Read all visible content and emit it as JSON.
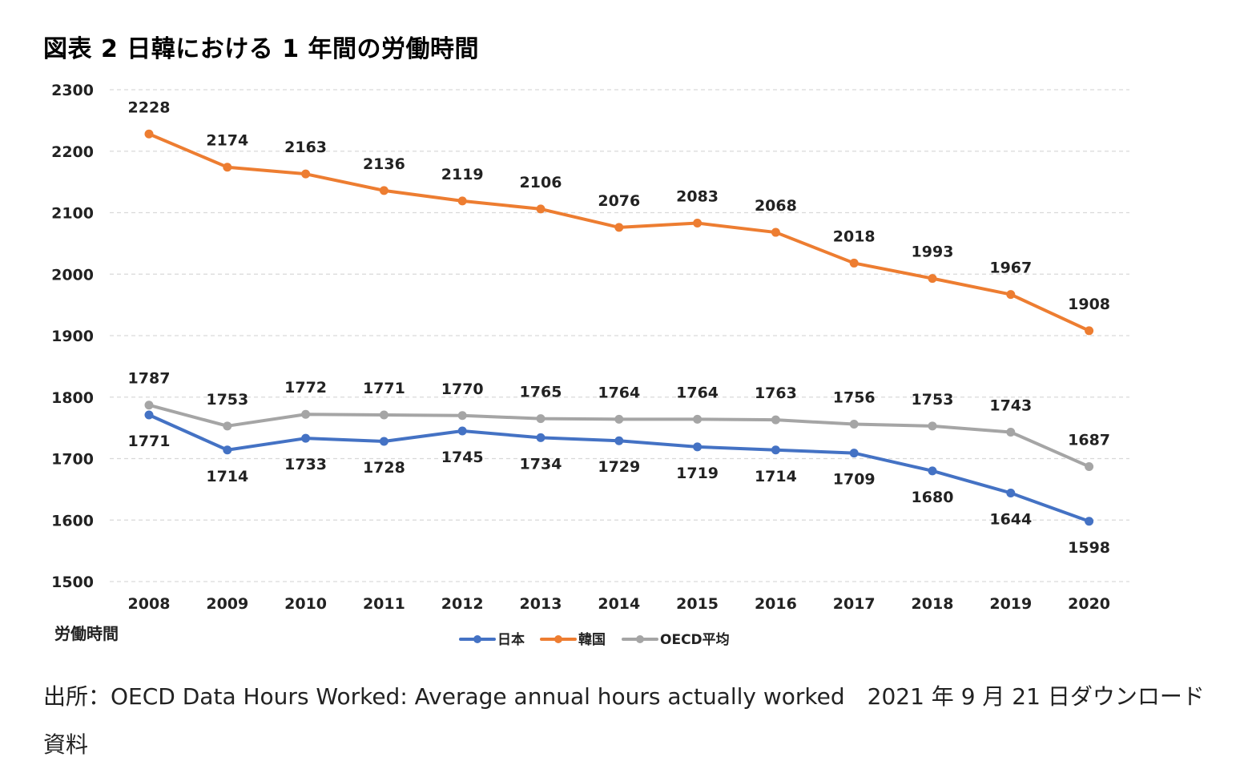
{
  "title": "図表 2  日韓における 1 年間の労働時間",
  "source_note": "出所：OECD Data Hours Worked: Average annual hours actually worked　2021 年 9 月 21 日ダウンロード資料",
  "chart_data": {
    "type": "line",
    "title": "図表 2  日韓における 1 年間の労働時間",
    "xlabel": "",
    "ylabel": "労働時間",
    "ylim": [
      1500,
      2300
    ],
    "yticks": [
      1500,
      1600,
      1700,
      1800,
      1900,
      2000,
      2100,
      2200,
      2300
    ],
    "grid": true,
    "legend": "bottom-center",
    "categories": [
      "2008",
      "2009",
      "2010",
      "2011",
      "2012",
      "2013",
      "2014",
      "2015",
      "2016",
      "2017",
      "2018",
      "2019",
      "2020"
    ],
    "series": [
      {
        "name": "日本",
        "color": "#4472c4",
        "label_position": "below",
        "values": [
          1771,
          1714,
          1733,
          1728,
          1745,
          1734,
          1729,
          1719,
          1714,
          1709,
          1680,
          1644,
          1598
        ]
      },
      {
        "name": "韓国",
        "color": "#ed7d31",
        "label_position": "above",
        "values": [
          2228,
          2174,
          2163,
          2136,
          2119,
          2106,
          2076,
          2083,
          2068,
          2018,
          1993,
          1967,
          1908
        ]
      },
      {
        "name": "OECD平均",
        "color": "#a5a5a5",
        "label_position": "above",
        "values": [
          1787,
          1753,
          1772,
          1771,
          1770,
          1765,
          1764,
          1764,
          1763,
          1756,
          1753,
          1743,
          1687
        ]
      }
    ]
  }
}
